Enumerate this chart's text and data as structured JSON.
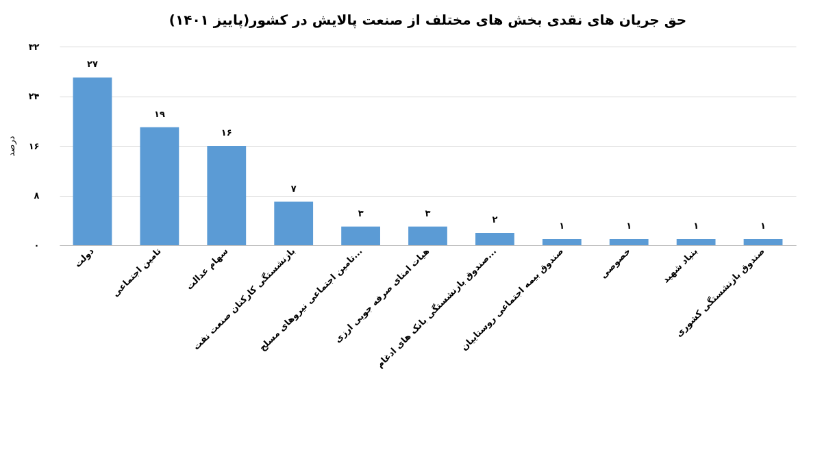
{
  "chart_data": {
    "type": "bar",
    "title": "حق جریان های نقدی بخش های مختلف از صنعت پالایش در کشور(پاییز ۱۴۰۱)",
    "ylabel": "درصد",
    "categories": [
      "دولت",
      "تامین اجتماعی",
      "سهام عدالت",
      "بازنشستگی کارکنان صنعت نفت",
      "تامین اجتماعی نیروهای مسلح...",
      "هیات امنای صرفه جویی ارزی",
      "صندوق بازنشستگی بانک های ادغام...",
      "صندوق بیمه اجتماعی روستاییان",
      "خصوصی",
      "بنیاد شهید",
      "صندوق بازنشستگی کشوری"
    ],
    "values": [
      27,
      19,
      16,
      7,
      3,
      3,
      2,
      1,
      1,
      1,
      1
    ],
    "value_labels": [
      "۲۷",
      "۱۹",
      "۱۶",
      "۷",
      "۳",
      "۳",
      "۲",
      "۱",
      "۱",
      "۱",
      "۱"
    ],
    "color": "#5b9bd5",
    "ylim": [
      0,
      32
    ],
    "yticks": [
      {
        "value": 0,
        "label": "۰"
      },
      {
        "value": 8,
        "label": "۸"
      },
      {
        "value": 16,
        "label": "۱۶"
      },
      {
        "value": 24,
        "label": "۲۴"
      },
      {
        "value": 32,
        "label": "۳۲"
      }
    ],
    "grid": "y"
  }
}
